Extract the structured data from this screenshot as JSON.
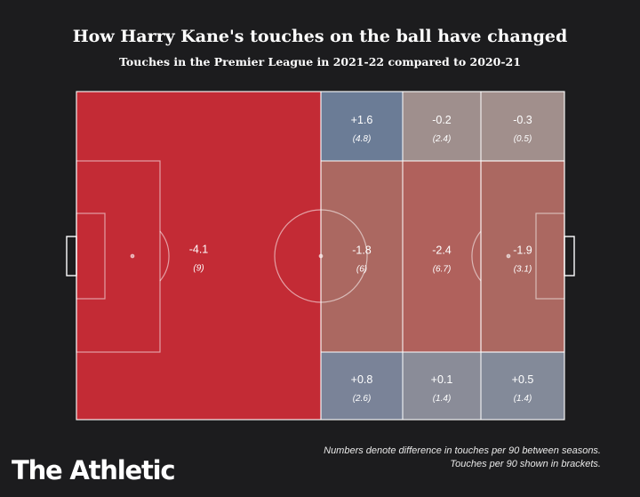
{
  "header": {
    "title": "How Harry Kane's touches on the ball have changed",
    "subtitle": "Touches in the Premier League in 2021-22 compared to 2020-21"
  },
  "footnote": {
    "line1": "Numbers denote difference in touches per 90 between seasons.",
    "line2": "Touches per 90 shown in brackets."
  },
  "brand": {
    "name": "The Athletic"
  },
  "colors": {
    "background": "#1c1c1e",
    "strong_decrease": "#c32b35",
    "decrease": "#ab6861",
    "slight_decrease": "#9f8f8d",
    "increase": "#6e7f98",
    "slight_increase": "#838a99",
    "lines": "#ffffff"
  },
  "chart_data": {
    "type": "heatmap",
    "title": "How Harry Kane's touches on the ball have changed",
    "subtitle": "Touches in the Premier League in 2021-22 compared to 2020-21",
    "zones": [
      {
        "zone": "own-half",
        "diff": "-4.1",
        "per90": "(9)",
        "color": "#c32b35"
      },
      {
        "zone": "left-wing-midfield",
        "diff": "+1.6",
        "per90": "(4.8)",
        "color": "#6b7c96"
      },
      {
        "zone": "left-wing-final-third-inner",
        "diff": "-0.2",
        "per90": "(2.4)",
        "color": "#9f8f8d"
      },
      {
        "zone": "left-wing-final-third-outer",
        "diff": "-0.3",
        "per90": "(0.5)",
        "color": "#a18f8c"
      },
      {
        "zone": "central-midfield",
        "diff": "-1.8",
        "per90": "(6)",
        "color": "#ab6861"
      },
      {
        "zone": "central-final-third-inner",
        "diff": "-2.4",
        "per90": "(6.7)",
        "color": "#b0615c"
      },
      {
        "zone": "central-final-third-outer",
        "diff": "-1.9",
        "per90": "(3.1)",
        "color": "#ab6861"
      },
      {
        "zone": "right-wing-midfield",
        "diff": "+0.8",
        "per90": "(2.6)",
        "color": "#7a8398"
      },
      {
        "zone": "right-wing-final-third-inner",
        "diff": "+0.1",
        "per90": "(1.4)",
        "color": "#8a8c98"
      },
      {
        "zone": "right-wing-final-third-outer",
        "diff": "+0.5",
        "per90": "(1.4)",
        "color": "#838a99"
      }
    ]
  }
}
